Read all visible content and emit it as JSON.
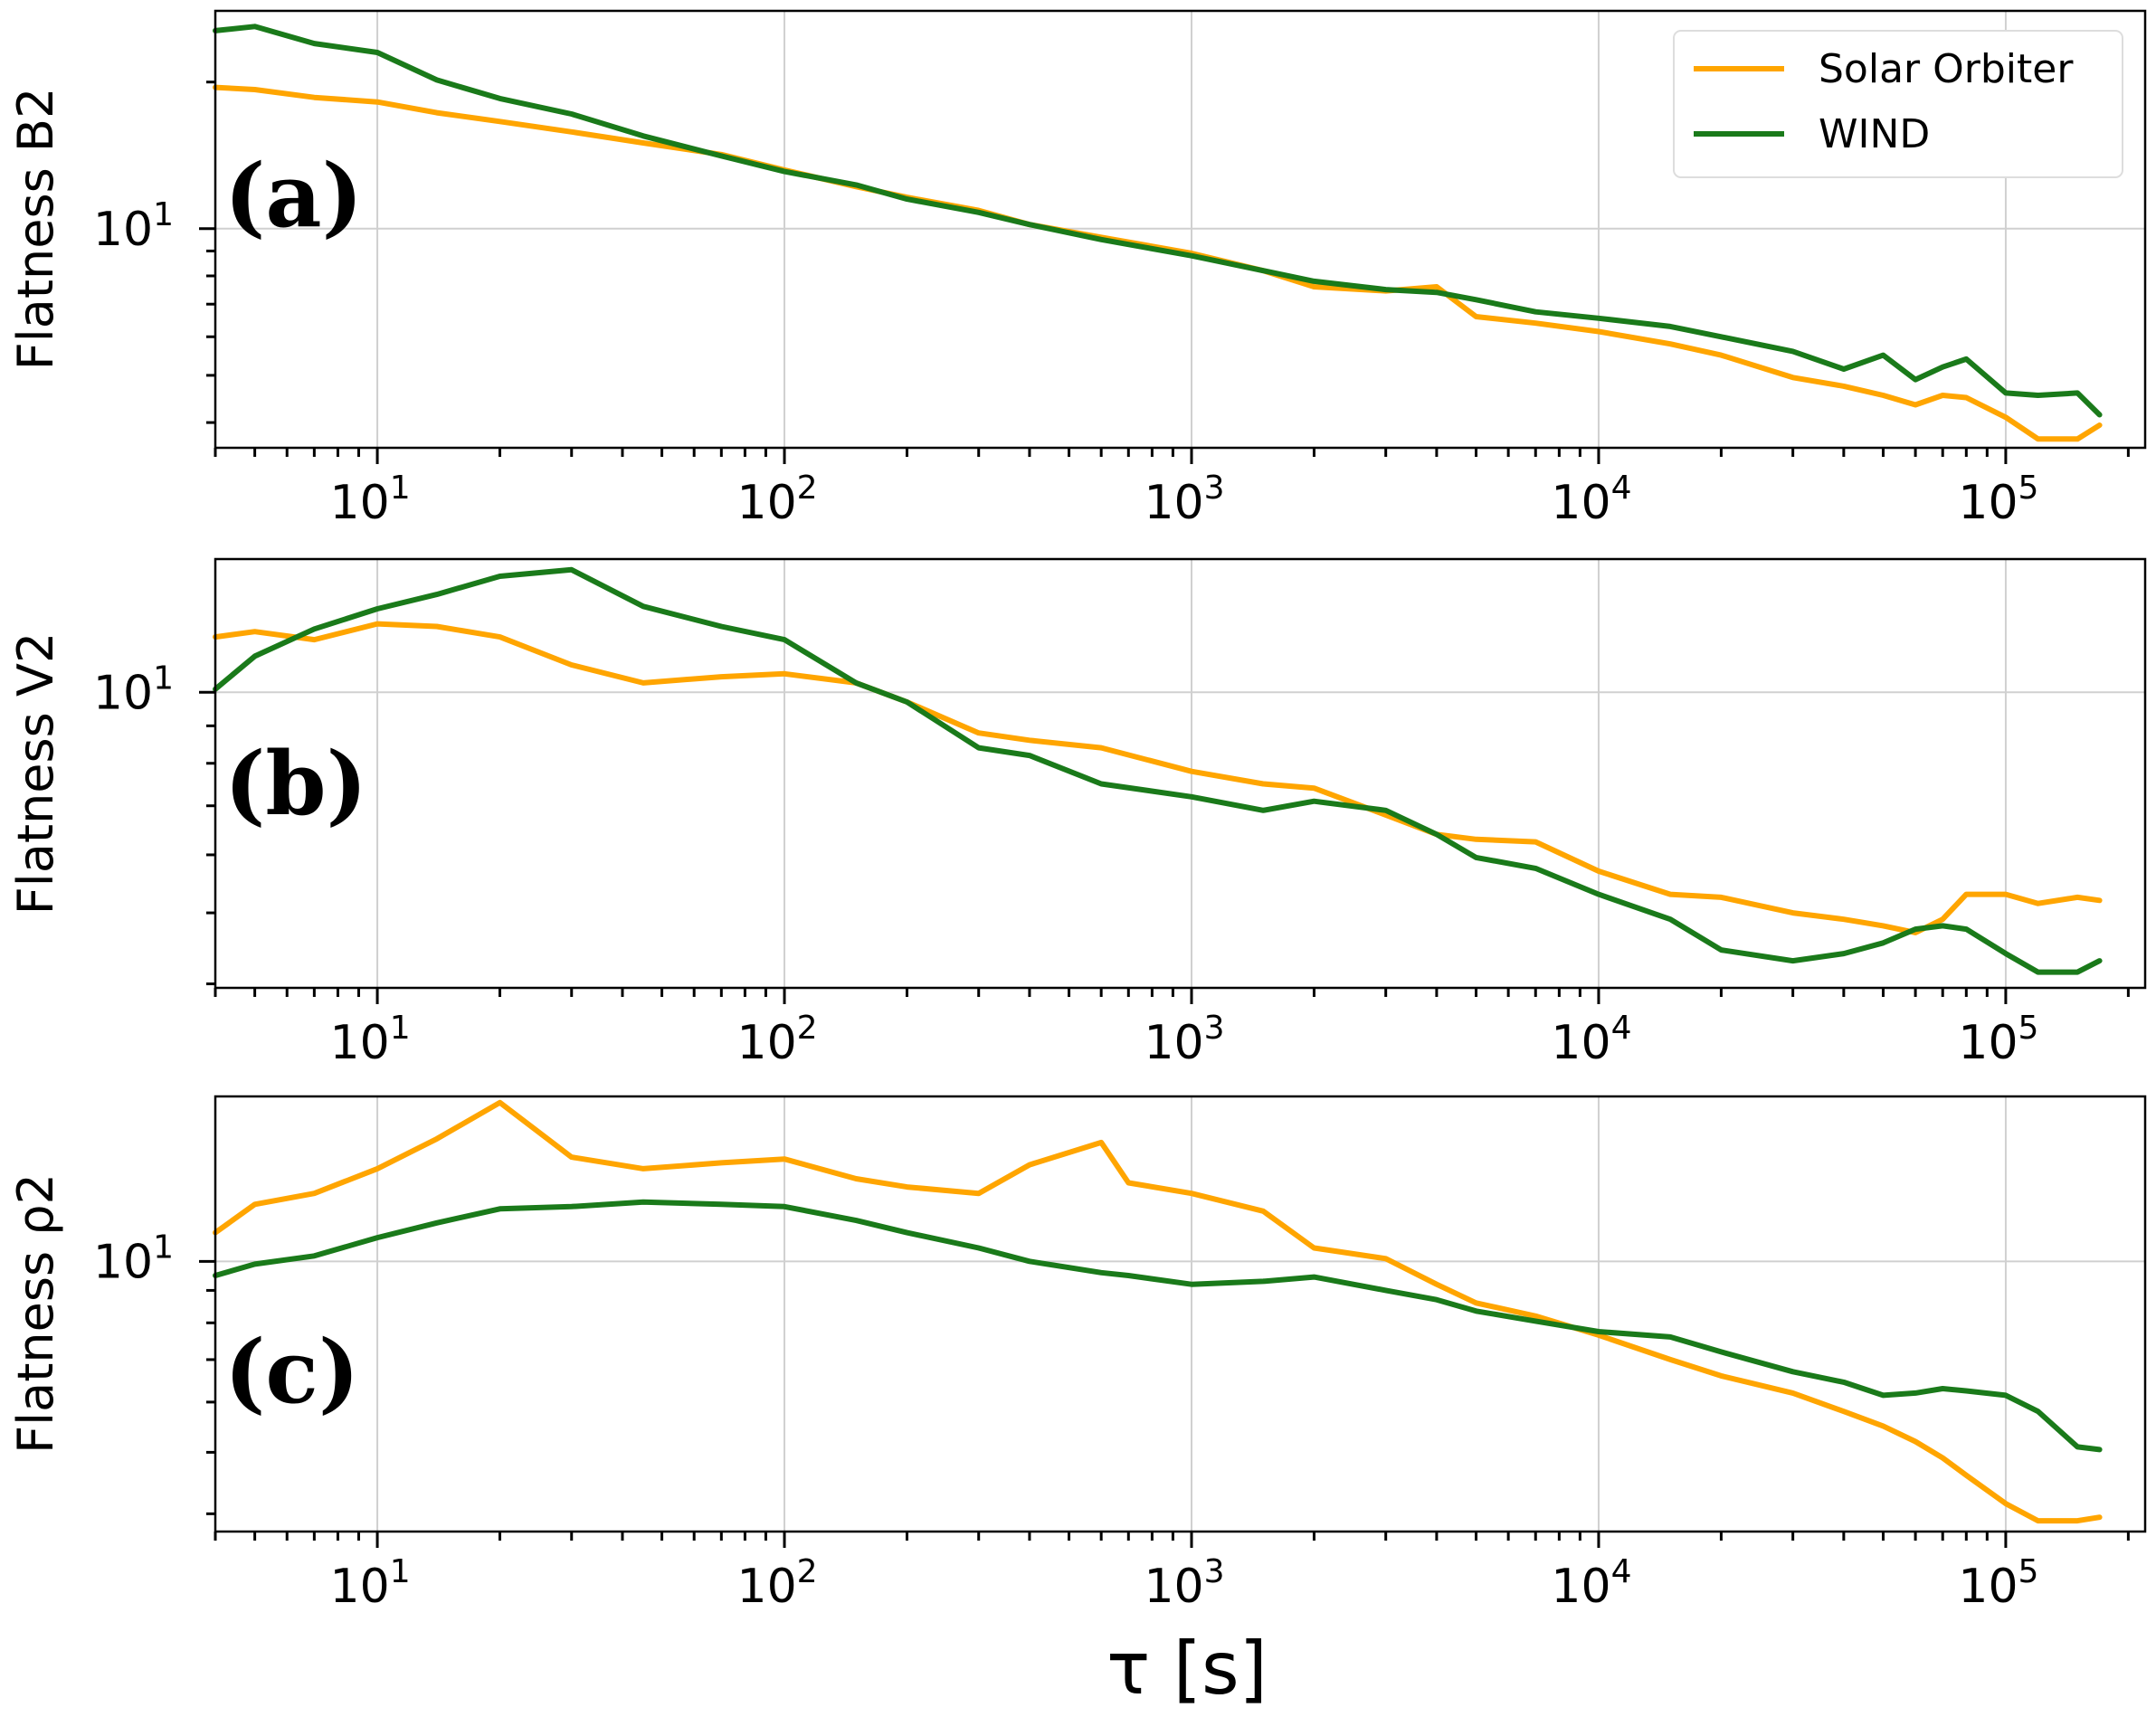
{
  "chart_data": [
    {
      "type": "line",
      "panel_label": "(a)",
      "ylabel": "Flatness B2",
      "xlabel": "",
      "xscale": "log",
      "yscale": "log",
      "xlim": [
        4,
        220000
      ],
      "ylim": [
        3.55,
        28
      ],
      "grid": true,
      "legend": "top-right",
      "x_tick_values": [
        10,
        100,
        1000,
        10000,
        100000
      ],
      "x_tick_labels": [
        {
          "base": "10",
          "exp": "1"
        },
        {
          "base": "10",
          "exp": "2"
        },
        {
          "base": "10",
          "exp": "3"
        },
        {
          "base": "10",
          "exp": "4"
        },
        {
          "base": "10",
          "exp": "5"
        }
      ],
      "y_tick_values": [
        10
      ],
      "y_tick_labels": [
        {
          "base": "10",
          "exp": "1"
        }
      ],
      "series": [
        {
          "name": "Solar Orbiter",
          "color": "#ffa500",
          "x": [
            4,
            5,
            7,
            10,
            14,
            20,
            30,
            45,
            70,
            100,
            150,
            200,
            300,
            400,
            600,
            1000,
            1500,
            2000,
            3000,
            4000,
            5000,
            7000,
            10000,
            15000,
            20000,
            30000,
            40000,
            50000,
            60000,
            70000,
            80000,
            100000,
            120000,
            150000,
            170000
          ],
          "y": [
            19.5,
            19.3,
            18.6,
            18.2,
            17.3,
            16.6,
            15.8,
            15.0,
            14.2,
            13.2,
            12.2,
            11.6,
            10.9,
            10.2,
            9.6,
            8.9,
            8.2,
            7.6,
            7.45,
            7.6,
            6.6,
            6.4,
            6.15,
            5.8,
            5.5,
            4.95,
            4.75,
            4.55,
            4.35,
            4.55,
            4.5,
            4.1,
            3.7,
            3.7,
            3.95
          ]
        },
        {
          "name": "WIND",
          "color": "#1a7a1a",
          "x": [
            4,
            5,
            7,
            10,
            14,
            20,
            30,
            45,
            70,
            100,
            150,
            200,
            300,
            400,
            600,
            1000,
            1500,
            2000,
            3000,
            4000,
            5000,
            7000,
            10000,
            15000,
            20000,
            30000,
            40000,
            50000,
            60000,
            70000,
            80000,
            100000,
            120000,
            150000,
            170000
          ],
          "y": [
            25.5,
            26.0,
            24.0,
            23.0,
            20.2,
            18.5,
            17.2,
            15.5,
            14.1,
            13.1,
            12.3,
            11.5,
            10.8,
            10.2,
            9.5,
            8.8,
            8.2,
            7.8,
            7.5,
            7.4,
            7.15,
            6.75,
            6.55,
            6.3,
            6.0,
            5.6,
            5.15,
            5.5,
            4.9,
            5.2,
            5.4,
            4.6,
            4.55,
            4.6,
            4.15
          ]
        }
      ]
    },
    {
      "type": "line",
      "panel_label": "(b)",
      "ylabel": "Flatness V2",
      "xlabel": "",
      "xscale": "log",
      "yscale": "log",
      "xlim": [
        4,
        220000
      ],
      "ylim": [
        3.95,
        15.2
      ],
      "grid": true,
      "x_tick_values": [
        10,
        100,
        1000,
        10000,
        100000
      ],
      "x_tick_labels": [
        {
          "base": "10",
          "exp": "1"
        },
        {
          "base": "10",
          "exp": "2"
        },
        {
          "base": "10",
          "exp": "3"
        },
        {
          "base": "10",
          "exp": "4"
        },
        {
          "base": "10",
          "exp": "5"
        }
      ],
      "y_tick_values": [
        10
      ],
      "y_tick_labels": [
        {
          "base": "10",
          "exp": "1"
        }
      ],
      "series": [
        {
          "name": "Solar Orbiter",
          "color": "#ffa500",
          "x": [
            4,
            5,
            7,
            10,
            14,
            20,
            30,
            45,
            70,
            100,
            150,
            200,
            300,
            400,
            600,
            1000,
            1500,
            2000,
            3000,
            4000,
            5000,
            7000,
            10000,
            15000,
            20000,
            30000,
            40000,
            50000,
            60000,
            70000,
            80000,
            100000,
            120000,
            150000,
            170000
          ],
          "y": [
            11.9,
            12.1,
            11.8,
            12.4,
            12.3,
            11.9,
            10.9,
            10.3,
            10.5,
            10.6,
            10.3,
            9.7,
            8.8,
            8.6,
            8.4,
            7.8,
            7.5,
            7.4,
            6.8,
            6.4,
            6.3,
            6.25,
            5.7,
            5.3,
            5.25,
            5.0,
            4.9,
            4.8,
            4.7,
            4.9,
            5.3,
            5.3,
            5.15,
            5.25,
            5.2
          ]
        },
        {
          "name": "WIND",
          "color": "#1a7a1a",
          "x": [
            4,
            5,
            7,
            10,
            14,
            20,
            30,
            45,
            70,
            100,
            150,
            200,
            300,
            400,
            600,
            1000,
            1500,
            2000,
            3000,
            4000,
            5000,
            7000,
            10000,
            15000,
            20000,
            30000,
            40000,
            50000,
            60000,
            70000,
            80000,
            100000,
            120000,
            150000,
            170000
          ],
          "y": [
            10.1,
            11.2,
            12.2,
            13.0,
            13.6,
            14.4,
            14.7,
            13.1,
            12.3,
            11.8,
            10.3,
            9.7,
            8.4,
            8.2,
            7.5,
            7.2,
            6.9,
            7.1,
            6.9,
            6.4,
            5.95,
            5.75,
            5.3,
            4.9,
            4.45,
            4.3,
            4.4,
            4.55,
            4.75,
            4.8,
            4.75,
            4.4,
            4.15,
            4.15,
            4.3
          ]
        }
      ]
    },
    {
      "type": "line",
      "panel_label": "(c)",
      "ylabel": "Flatness ρ2",
      "xlabel": "τ [s]",
      "xscale": "log",
      "yscale": "log",
      "xlim": [
        4,
        220000
      ],
      "ylim": [
        3.75,
        18.2
      ],
      "grid": true,
      "x_tick_values": [
        10,
        100,
        1000,
        10000,
        100000
      ],
      "x_tick_labels": [
        {
          "base": "10",
          "exp": "1"
        },
        {
          "base": "10",
          "exp": "2"
        },
        {
          "base": "10",
          "exp": "3"
        },
        {
          "base": "10",
          "exp": "4"
        },
        {
          "base": "10",
          "exp": "5"
        }
      ],
      "y_tick_values": [
        10
      ],
      "y_tick_labels": [
        {
          "base": "10",
          "exp": "1"
        }
      ],
      "series": [
        {
          "name": "Solar Orbiter",
          "color": "#ffa500",
          "x": [
            4,
            5,
            7,
            10,
            14,
            20,
            30,
            45,
            70,
            100,
            150,
            200,
            300,
            400,
            600,
            700,
            1000,
            1500,
            2000,
            3000,
            4000,
            5000,
            7000,
            10000,
            15000,
            20000,
            30000,
            40000,
            50000,
            60000,
            70000,
            80000,
            100000,
            120000,
            150000,
            170000
          ],
          "y": [
            11.1,
            12.3,
            12.8,
            14.0,
            15.6,
            17.8,
            14.6,
            14.0,
            14.3,
            14.5,
            13.5,
            13.1,
            12.8,
            14.2,
            15.4,
            13.3,
            12.8,
            12.0,
            10.5,
            10.1,
            9.2,
            8.6,
            8.2,
            7.65,
            7.0,
            6.6,
            6.2,
            5.8,
            5.5,
            5.2,
            4.9,
            4.6,
            4.15,
            3.9,
            3.9,
            3.95
          ]
        },
        {
          "name": "WIND",
          "color": "#1a7a1a",
          "x": [
            4,
            5,
            7,
            10,
            14,
            20,
            30,
            45,
            70,
            100,
            150,
            200,
            300,
            400,
            600,
            700,
            1000,
            1500,
            2000,
            3000,
            4000,
            5000,
            7000,
            10000,
            15000,
            20000,
            30000,
            40000,
            50000,
            60000,
            70000,
            80000,
            100000,
            120000,
            150000,
            170000
          ],
          "y": [
            9.5,
            9.9,
            10.2,
            10.9,
            11.5,
            12.1,
            12.2,
            12.4,
            12.3,
            12.2,
            11.6,
            11.1,
            10.5,
            10.0,
            9.6,
            9.5,
            9.2,
            9.3,
            9.45,
            9.0,
            8.7,
            8.35,
            8.05,
            7.75,
            7.6,
            7.2,
            6.7,
            6.45,
            6.15,
            6.2,
            6.3,
            6.25,
            6.15,
            5.8,
            5.1,
            5.05
          ]
        }
      ]
    }
  ]
}
